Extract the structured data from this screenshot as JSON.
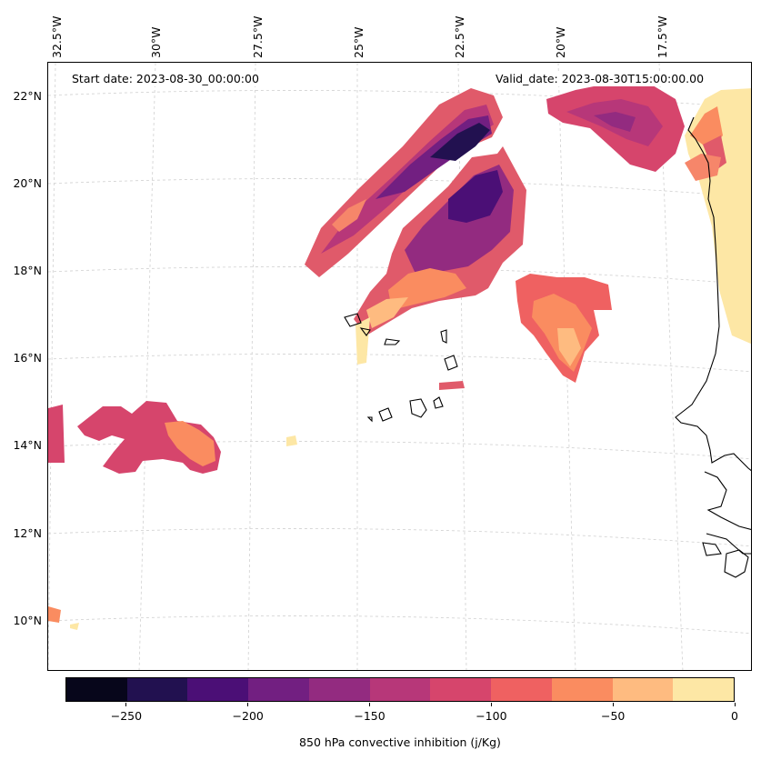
{
  "map": {
    "start_label": "Start date: 2023-08-30_00:00:00",
    "valid_label": "Valid_date: 2023-08-30T15:00:00.00",
    "longitude_labels": [
      "32.5°W",
      "30°W",
      "27.5°W",
      "25°W",
      "22.5°W",
      "20°W",
      "17.5°W"
    ],
    "latitude_labels": [
      "22°N",
      "20°N",
      "18°N",
      "16°N",
      "14°N",
      "12°N",
      "10°N"
    ],
    "variable": "850 hPa convective inhibition (j/Kg)"
  },
  "colorbar": {
    "label": "850 hPa convective inhibition (j/Kg)",
    "levels": [
      -275,
      -250,
      -225,
      -200,
      -175,
      -150,
      -125,
      -100,
      -75,
      -50,
      -25,
      0
    ],
    "tick_labels": [
      "−250",
      "−200",
      "−150",
      "−100",
      "−50",
      "0"
    ],
    "tick_values": [
      -250,
      -200,
      -150,
      -100,
      -50,
      0
    ],
    "colors": [
      "#07061b",
      "#221150",
      "#4b0f76",
      "#721f81",
      "#932b80",
      "#b73779",
      "#d6456c",
      "#ef6161",
      "#fa8c60",
      "#febb80",
      "#fde7a5"
    ]
  }
}
